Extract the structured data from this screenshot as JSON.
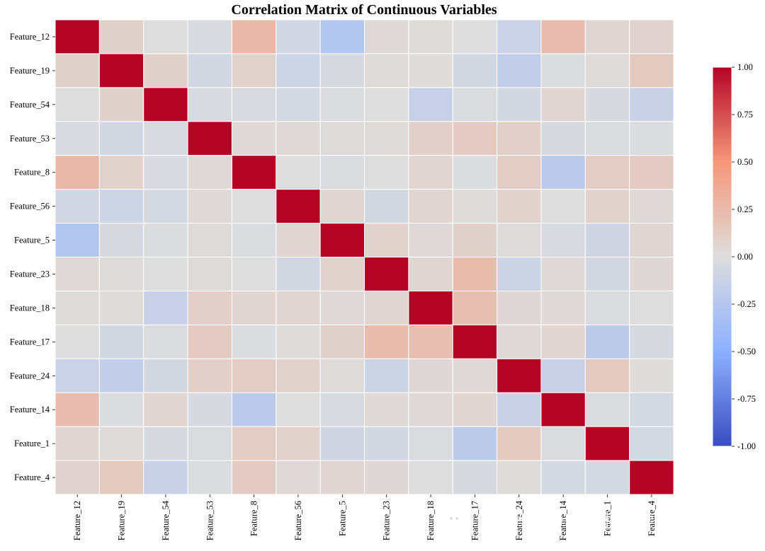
{
  "chart_data": {
    "type": "heatmap",
    "title": "Correlation Matrix of Continuous Variables",
    "labels": [
      "Feature_12",
      "Feature_19",
      "Feature_54",
      "Feature_53",
      "Feature_8",
      "Feature_56",
      "Feature_5",
      "Feature_23",
      "Feature_18",
      "Feature_17",
      "Feature_24",
      "Feature_14",
      "Feature_1",
      "Feature_4"
    ],
    "matrix": [
      [
        1.0,
        0.09,
        0.0,
        -0.03,
        0.27,
        -0.08,
        -0.26,
        0.03,
        0.01,
        0.0,
        -0.12,
        0.23,
        0.05,
        0.07
      ],
      [
        0.09,
        1.0,
        0.09,
        -0.07,
        0.08,
        -0.1,
        -0.04,
        0.02,
        0.01,
        -0.07,
        -0.17,
        -0.01,
        0.02,
        0.14
      ],
      [
        0.0,
        0.09,
        1.0,
        -0.03,
        -0.03,
        -0.06,
        -0.01,
        0.0,
        -0.14,
        -0.02,
        -0.07,
        0.06,
        -0.04,
        -0.13
      ],
      [
        -0.03,
        -0.07,
        -0.03,
        1.0,
        0.03,
        0.03,
        0.02,
        0.02,
        0.1,
        0.13,
        0.1,
        -0.04,
        -0.02,
        -0.01
      ],
      [
        0.27,
        0.08,
        -0.03,
        0.03,
        1.0,
        0.0,
        -0.02,
        0.0,
        0.06,
        -0.01,
        0.12,
        -0.21,
        0.12,
        0.13
      ],
      [
        -0.08,
        -0.1,
        -0.06,
        0.03,
        0.0,
        1.0,
        0.05,
        -0.07,
        0.06,
        0.01,
        0.08,
        0.0,
        0.08,
        0.03
      ],
      [
        -0.26,
        -0.04,
        -0.01,
        0.02,
        -0.02,
        0.05,
        1.0,
        0.08,
        0.03,
        0.09,
        0.02,
        -0.03,
        -0.09,
        0.05
      ],
      [
        0.03,
        0.02,
        0.0,
        0.02,
        0.0,
        -0.07,
        0.08,
        1.0,
        0.05,
        0.24,
        -0.11,
        0.03,
        -0.07,
        0.04
      ],
      [
        0.01,
        0.01,
        -0.14,
        0.1,
        0.06,
        0.06,
        0.03,
        0.05,
        1.0,
        0.22,
        0.04,
        0.03,
        -0.02,
        0.0
      ],
      [
        0.0,
        -0.07,
        -0.02,
        0.13,
        -0.01,
        0.01,
        0.09,
        0.24,
        0.22,
        1.0,
        0.03,
        0.06,
        -0.2,
        -0.04
      ],
      [
        -0.12,
        -0.17,
        -0.07,
        0.1,
        0.12,
        0.08,
        0.02,
        -0.11,
        0.04,
        0.03,
        1.0,
        -0.13,
        0.14,
        0.01
      ],
      [
        0.23,
        -0.01,
        0.06,
        -0.04,
        -0.21,
        0.0,
        -0.03,
        0.03,
        0.03,
        0.06,
        -0.13,
        1.0,
        -0.02,
        -0.06
      ],
      [
        0.05,
        0.02,
        -0.04,
        -0.02,
        0.12,
        0.08,
        -0.09,
        -0.07,
        -0.02,
        -0.2,
        0.14,
        -0.02,
        1.0,
        -0.06
      ],
      [
        0.07,
        0.14,
        -0.13,
        -0.01,
        0.13,
        0.03,
        0.05,
        0.04,
        0.0,
        -0.04,
        0.01,
        -0.06,
        -0.06,
        1.0
      ]
    ],
    "colormap": "coolwarm",
    "vmin": -1,
    "vmax": 1,
    "colorbar_ticks": [
      "1.00",
      "0.75",
      "0.50",
      "0.25",
      "0.00",
      "-0.25",
      "-0.50",
      "-0.75",
      "-1.00"
    ]
  },
  "watermark": "公众号 · Python机器学习AI"
}
